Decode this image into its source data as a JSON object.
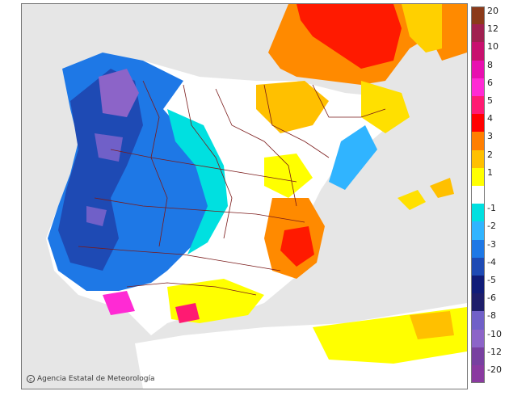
{
  "credit": {
    "icon": "copyright-icon",
    "text": "Agencia Estatal de Meteorología"
  },
  "legend": {
    "items": [
      {
        "label": "20",
        "color": "#8b3a1a"
      },
      {
        "label": "12",
        "color": "#a02050"
      },
      {
        "label": "10",
        "color": "#c8106e"
      },
      {
        "label": "8",
        "color": "#e80fb0"
      },
      {
        "label": "6",
        "color": "#ff2ad4"
      },
      {
        "label": "5",
        "color": "#ff1a72"
      },
      {
        "label": "4",
        "color": "#ff0000"
      },
      {
        "label": "3",
        "color": "#ff7f00"
      },
      {
        "label": "2",
        "color": "#ffc000"
      },
      {
        "label": "1",
        "color": "#ffff00"
      },
      {
        "label": "",
        "color": "#ffffff"
      },
      {
        "label": "-1",
        "color": "#00e0e0"
      },
      {
        "label": "-2",
        "color": "#30b4ff"
      },
      {
        "label": "-3",
        "color": "#1e78e6"
      },
      {
        "label": "-4",
        "color": "#1e4ab4"
      },
      {
        "label": "-5",
        "color": "#101c78"
      },
      {
        "label": "-6",
        "color": "#1e1e6a"
      },
      {
        "label": "-8",
        "color": "#7060c8"
      },
      {
        "label": "-10",
        "color": "#8c64c8"
      },
      {
        "label": "-12",
        "color": "#7840a0"
      },
      {
        "label": "-20",
        "color": "#8a3aa0"
      }
    ]
  },
  "colors": {
    "sea": "#e6e6e6",
    "land_base": "#ffffff",
    "border": "#7a1a1a"
  }
}
